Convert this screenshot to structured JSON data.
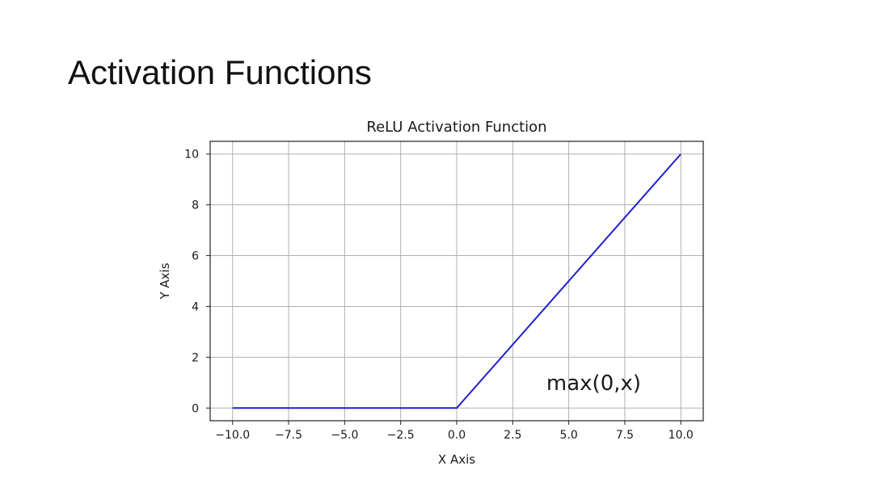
{
  "slide": {
    "title": "Activation Functions"
  },
  "chart_data": {
    "type": "line",
    "title": "ReLU Activation Function",
    "xlabel": "X Axis",
    "ylabel": "Y Axis",
    "xlim": [
      -11,
      11
    ],
    "ylim": [
      -0.5,
      10.5
    ],
    "xticks": [
      -10.0,
      -7.5,
      -5.0,
      -2.5,
      0.0,
      2.5,
      5.0,
      7.5,
      10.0
    ],
    "xtick_labels": [
      "−10.0",
      "−7.5",
      "−5.0",
      "−2.5",
      "0.0",
      "2.5",
      "5.0",
      "7.5",
      "10.0"
    ],
    "yticks": [
      0,
      2,
      4,
      6,
      8,
      10
    ],
    "ytick_labels": [
      "0",
      "2",
      "4",
      "6",
      "8",
      "10"
    ],
    "grid": true,
    "series": [
      {
        "color": "#1f1fd0",
        "x": [
          -10,
          0,
          10
        ],
        "y": [
          0,
          0,
          10
        ]
      }
    ],
    "annotations": [
      {
        "text": "max(0,x)",
        "x": 4,
        "y": 1.0
      }
    ]
  }
}
